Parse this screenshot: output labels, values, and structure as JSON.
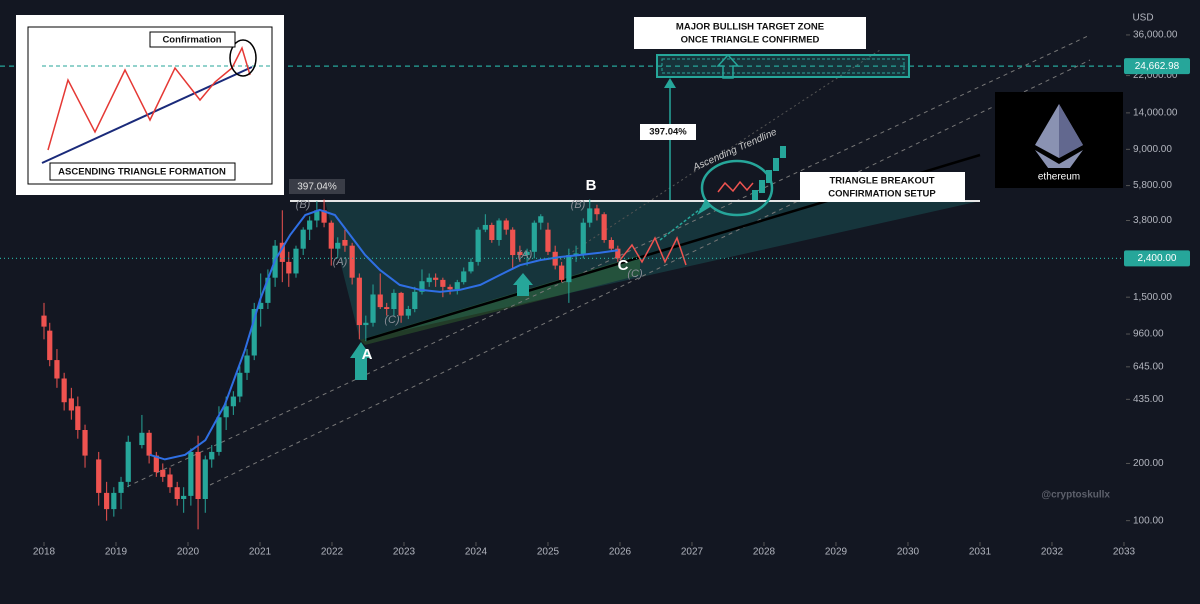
{
  "chart_data": {
    "type": "candlestick",
    "currency": "USD",
    "log_scale": true,
    "xlim": [
      2017.389,
      2034.056
    ],
    "ylim": [
      79.1,
      54980
    ],
    "xticks": [
      2018,
      2019,
      2020,
      2021,
      2022,
      2023,
      2024,
      2025,
      2026,
      2027,
      2028,
      2029,
      2030,
      2031,
      2032,
      2033
    ],
    "yticks": [
      {
        "value": 36000,
        "label": "36,000.00"
      },
      {
        "value": 22000,
        "label": "22,000.00"
      },
      {
        "value": 14000,
        "label": "14,000.00"
      },
      {
        "value": 9000,
        "label": "9,000.00"
      },
      {
        "value": 5800,
        "label": "5,800.00"
      },
      {
        "value": 3800,
        "label": "3,800.00"
      },
      {
        "value": 1500,
        "label": "1,500.00"
      },
      {
        "value": 960,
        "label": "960.00"
      },
      {
        "value": 645,
        "label": "645.00"
      },
      {
        "value": 435,
        "label": "435.00"
      },
      {
        "value": 200,
        "label": "200.00"
      },
      {
        "value": 100,
        "label": "100.00"
      }
    ],
    "price_lines": [
      {
        "value": 24662.98,
        "label": "24,662.98",
        "style": "dashed"
      },
      {
        "value": 2400,
        "label": "2,400.00",
        "style": "dotted"
      }
    ],
    "up_color": "#26a69a",
    "down_color": "#ef5350",
    "candles": [
      {
        "x": 2018.0,
        "open": 1200,
        "high": 1400,
        "low": 900,
        "close": 1050
      },
      {
        "x": 2018.08,
        "open": 1000,
        "high": 1100,
        "low": 650,
        "close": 700
      },
      {
        "x": 2018.18,
        "open": 700,
        "high": 800,
        "low": 500,
        "close": 560
      },
      {
        "x": 2018.28,
        "open": 560,
        "high": 600,
        "low": 380,
        "close": 420
      },
      {
        "x": 2018.38,
        "open": 440,
        "high": 500,
        "low": 340,
        "close": 380
      },
      {
        "x": 2018.47,
        "open": 400,
        "high": 450,
        "low": 270,
        "close": 300
      },
      {
        "x": 2018.57,
        "open": 300,
        "high": 320,
        "low": 190,
        "close": 220
      },
      {
        "x": 2018.76,
        "open": 210,
        "high": 230,
        "low": 120,
        "close": 140
      },
      {
        "x": 2018.87,
        "open": 140,
        "high": 160,
        "low": 100,
        "close": 115
      },
      {
        "x": 2018.97,
        "open": 115,
        "high": 150,
        "low": 105,
        "close": 140
      },
      {
        "x": 2019.07,
        "open": 140,
        "high": 170,
        "low": 115,
        "close": 160
      },
      {
        "x": 2019.17,
        "open": 160,
        "high": 280,
        "low": 150,
        "close": 260
      },
      {
        "x": 2019.36,
        "open": 250,
        "high": 360,
        "low": 240,
        "close": 290
      },
      {
        "x": 2019.46,
        "open": 290,
        "high": 300,
        "low": 200,
        "close": 220
      },
      {
        "x": 2019.56,
        "open": 220,
        "high": 230,
        "low": 170,
        "close": 180
      },
      {
        "x": 2019.65,
        "open": 185,
        "high": 200,
        "low": 160,
        "close": 170
      },
      {
        "x": 2019.75,
        "open": 175,
        "high": 190,
        "low": 140,
        "close": 150
      },
      {
        "x": 2019.85,
        "open": 150,
        "high": 160,
        "low": 120,
        "close": 130
      },
      {
        "x": 2019.94,
        "open": 130,
        "high": 150,
        "low": 110,
        "close": 135
      },
      {
        "x": 2020.04,
        "open": 135,
        "high": 240,
        "low": 120,
        "close": 230
      },
      {
        "x": 2020.14,
        "open": 230,
        "high": 280,
        "low": 90,
        "close": 130
      },
      {
        "x": 2020.24,
        "open": 130,
        "high": 220,
        "low": 110,
        "close": 210
      },
      {
        "x": 2020.33,
        "open": 210,
        "high": 250,
        "low": 190,
        "close": 230
      },
      {
        "x": 2020.43,
        "open": 230,
        "high": 400,
        "low": 220,
        "close": 350
      },
      {
        "x": 2020.53,
        "open": 350,
        "high": 450,
        "low": 300,
        "close": 400
      },
      {
        "x": 2020.63,
        "open": 400,
        "high": 480,
        "low": 360,
        "close": 450
      },
      {
        "x": 2020.72,
        "open": 450,
        "high": 650,
        "low": 420,
        "close": 600
      },
      {
        "x": 2020.82,
        "open": 600,
        "high": 800,
        "low": 550,
        "close": 740
      },
      {
        "x": 2020.92,
        "open": 740,
        "high": 1400,
        "low": 700,
        "close": 1300
      },
      {
        "x": 2021.01,
        "open": 1300,
        "high": 2000,
        "low": 1050,
        "close": 1400
      },
      {
        "x": 2021.11,
        "open": 1400,
        "high": 2100,
        "low": 1300,
        "close": 1900
      },
      {
        "x": 2021.21,
        "open": 1900,
        "high": 3000,
        "low": 1700,
        "close": 2800
      },
      {
        "x": 2021.31,
        "open": 2900,
        "high": 4300,
        "low": 1800,
        "close": 2300
      },
      {
        "x": 2021.4,
        "open": 2300,
        "high": 2600,
        "low": 1700,
        "close": 2000
      },
      {
        "x": 2021.5,
        "open": 2000,
        "high": 2800,
        "low": 1900,
        "close": 2700
      },
      {
        "x": 2021.6,
        "open": 2700,
        "high": 3500,
        "low": 2500,
        "close": 3400
      },
      {
        "x": 2021.69,
        "open": 3400,
        "high": 4000,
        "low": 3000,
        "close": 3800
      },
      {
        "x": 2021.79,
        "open": 3800,
        "high": 4800,
        "low": 3500,
        "close": 4300
      },
      {
        "x": 2021.89,
        "open": 4300,
        "high": 4900,
        "low": 3500,
        "close": 3700
      },
      {
        "x": 2021.99,
        "open": 3700,
        "high": 3800,
        "low": 2200,
        "close": 2700
      },
      {
        "x": 2022.08,
        "open": 2700,
        "high": 3100,
        "low": 2400,
        "close": 2900
      },
      {
        "x": 2022.18,
        "open": 3000,
        "high": 3400,
        "low": 2600,
        "close": 2800
      },
      {
        "x": 2022.28,
        "open": 2800,
        "high": 2900,
        "low": 1750,
        "close": 1900
      },
      {
        "x": 2022.38,
        "open": 1900,
        "high": 2000,
        "low": 900,
        "close": 1070
      },
      {
        "x": 2022.47,
        "open": 1070,
        "high": 1200,
        "low": 880,
        "close": 1100
      },
      {
        "x": 2022.57,
        "open": 1100,
        "high": 1750,
        "low": 1050,
        "close": 1550
      },
      {
        "x": 2022.67,
        "open": 1550,
        "high": 2000,
        "low": 1300,
        "close": 1330
      },
      {
        "x": 2022.76,
        "open": 1330,
        "high": 1400,
        "low": 1200,
        "close": 1300
      },
      {
        "x": 2022.86,
        "open": 1300,
        "high": 1650,
        "low": 1200,
        "close": 1580
      },
      {
        "x": 2022.96,
        "open": 1580,
        "high": 1600,
        "low": 1100,
        "close": 1200
      },
      {
        "x": 2023.06,
        "open": 1200,
        "high": 1350,
        "low": 1150,
        "close": 1300
      },
      {
        "x": 2023.15,
        "open": 1300,
        "high": 1700,
        "low": 1250,
        "close": 1600
      },
      {
        "x": 2023.25,
        "open": 1600,
        "high": 2100,
        "low": 1550,
        "close": 1820
      },
      {
        "x": 2023.35,
        "open": 1800,
        "high": 2000,
        "low": 1700,
        "close": 1900
      },
      {
        "x": 2023.44,
        "open": 1900,
        "high": 2000,
        "low": 1700,
        "close": 1850
      },
      {
        "x": 2023.54,
        "open": 1850,
        "high": 1900,
        "low": 1500,
        "close": 1700
      },
      {
        "x": 2023.64,
        "open": 1700,
        "high": 1750,
        "low": 1550,
        "close": 1650
      },
      {
        "x": 2023.74,
        "open": 1650,
        "high": 1850,
        "low": 1550,
        "close": 1800
      },
      {
        "x": 2023.83,
        "open": 1800,
        "high": 2150,
        "low": 1750,
        "close": 2050
      },
      {
        "x": 2023.93,
        "open": 2050,
        "high": 2400,
        "low": 2000,
        "close": 2300
      },
      {
        "x": 2024.03,
        "open": 2300,
        "high": 3500,
        "low": 2200,
        "close": 3400
      },
      {
        "x": 2024.13,
        "open": 3400,
        "high": 4100,
        "low": 3300,
        "close": 3600
      },
      {
        "x": 2024.22,
        "open": 3600,
        "high": 3700,
        "low": 2900,
        "close": 3000
      },
      {
        "x": 2024.32,
        "open": 3000,
        "high": 3900,
        "low": 2800,
        "close": 3800
      },
      {
        "x": 2024.42,
        "open": 3800,
        "high": 3900,
        "low": 3200,
        "close": 3400
      },
      {
        "x": 2024.51,
        "open": 3400,
        "high": 3500,
        "low": 2100,
        "close": 2500
      },
      {
        "x": 2024.61,
        "open": 2600,
        "high": 2800,
        "low": 2300,
        "close": 2500
      },
      {
        "x": 2024.71,
        "open": 2500,
        "high": 2700,
        "low": 2200,
        "close": 2600
      },
      {
        "x": 2024.81,
        "open": 2600,
        "high": 3800,
        "low": 2400,
        "close": 3700
      },
      {
        "x": 2024.9,
        "open": 3700,
        "high": 4100,
        "low": 3400,
        "close": 4000
      },
      {
        "x": 2025.0,
        "open": 3400,
        "high": 3700,
        "low": 2500,
        "close": 2600
      },
      {
        "x": 2025.1,
        "open": 2600,
        "high": 2800,
        "low": 2100,
        "close": 2200
      },
      {
        "x": 2025.19,
        "open": 2200,
        "high": 2300,
        "low": 1800,
        "close": 1850
      },
      {
        "x": 2025.29,
        "open": 1800,
        "high": 2700,
        "low": 1400,
        "close": 2500
      },
      {
        "x": 2025.39,
        "open": 2500,
        "high": 2800,
        "low": 2300,
        "close": 2550
      },
      {
        "x": 2025.49,
        "open": 2500,
        "high": 3900,
        "low": 2400,
        "close": 3700
      },
      {
        "x": 2025.58,
        "open": 3700,
        "high": 4900,
        "low": 3500,
        "close": 4400
      },
      {
        "x": 2025.68,
        "open": 4400,
        "high": 4600,
        "low": 3800,
        "close": 4100
      },
      {
        "x": 2025.78,
        "open": 4100,
        "high": 4200,
        "low": 2900,
        "close": 3000
      },
      {
        "x": 2025.88,
        "open": 3000,
        "high": 3100,
        "low": 2600,
        "close": 2700
      },
      {
        "x": 2025.97,
        "open": 2700,
        "high": 2800,
        "low": 2300,
        "close": 2400
      }
    ],
    "moving_average": {
      "color": "#2f6fe4",
      "x": [
        2019.47,
        2019.68,
        2019.96,
        2020.24,
        2020.51,
        2020.79,
        2021.0,
        2021.21,
        2021.42,
        2021.63,
        2021.83,
        2022.04,
        2022.25,
        2022.46,
        2022.67,
        2022.94,
        2023.22,
        2023.5,
        2023.78,
        2024.06,
        2024.33,
        2024.61,
        2024.89,
        2025.17,
        2025.44,
        2025.72,
        2025.97
      ],
      "values": [
        222,
        210,
        222,
        265,
        406,
        790,
        1450,
        2350,
        3190,
        4060,
        4320,
        4060,
        3190,
        2500,
        2080,
        1740,
        1640,
        1600,
        1640,
        1740,
        1960,
        2210,
        2350,
        2440,
        2500,
        2570,
        2650
      ]
    },
    "inset": {
      "confirmation": "Confirmation",
      "title": "ASCENDING TRIANGLE FORMATION"
    },
    "annotations": {
      "pct_left": "397.04%",
      "pct_right": "397.04%",
      "wave_b1": "(B)",
      "wave_a1": "(A)",
      "wave_c1": "(C)",
      "wave_b2": "(B)",
      "wave_a2": "(A)",
      "wave_c2": "(C)",
      "point_a": "A",
      "point_b": "B",
      "point_c": "C",
      "target_1": "MAJOR BULLISH TARGET ZONE",
      "target_2": "ONCE TRIANGLE CONFIRMED",
      "trendline": "Ascending Trendline",
      "breakout_1": "TRIANGLE BREAKOUT",
      "breakout_2": "CONFIRMATION SETUP",
      "logo": "ethereum",
      "watermark": "@cryptoskullx"
    }
  }
}
